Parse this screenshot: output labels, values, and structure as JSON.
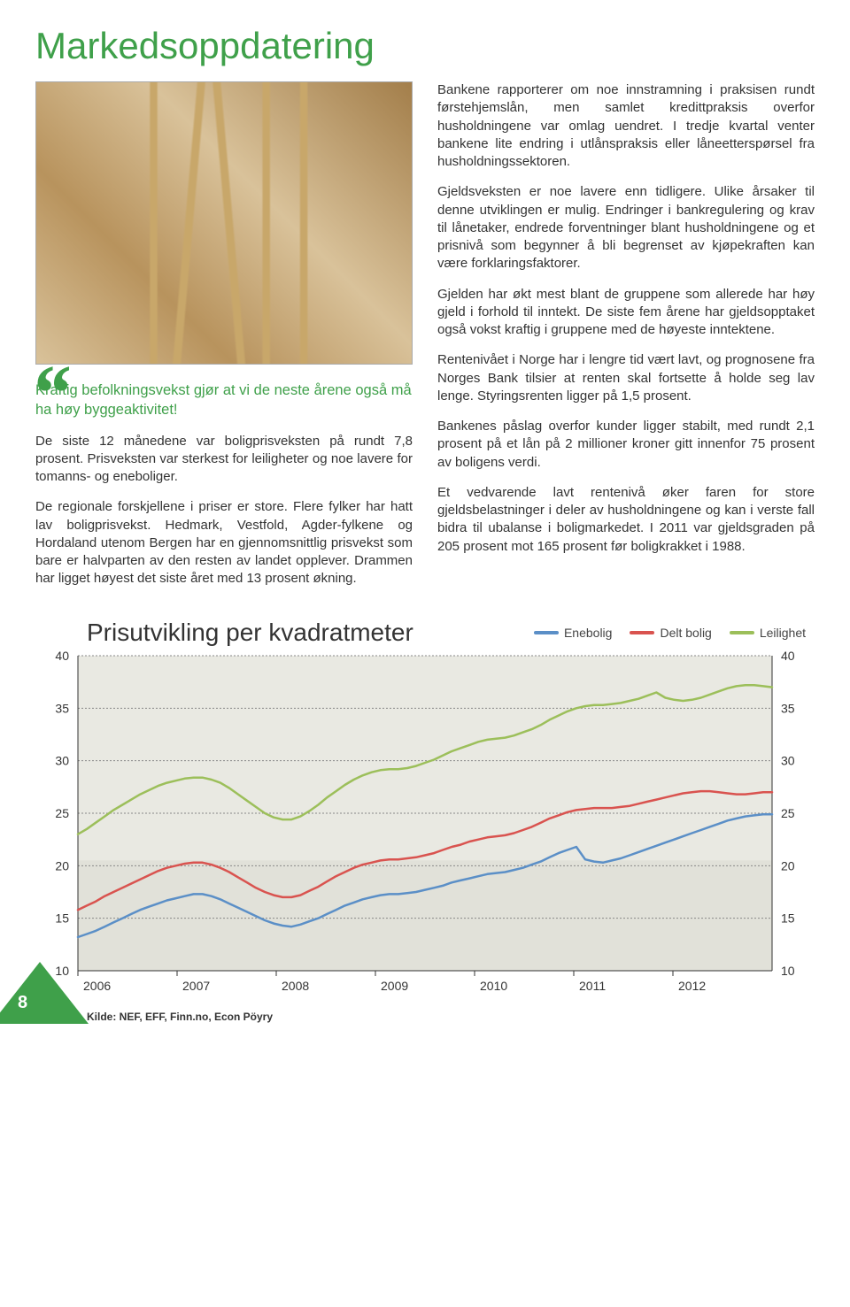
{
  "title": "Markedsoppdatering",
  "title_color": "#3fa04a",
  "quote_color": "#3fa04a",
  "left": {
    "lead": "Kraftig befolkningsvekst gjør at vi de neste årene også må ha høy byggeaktivitet!",
    "p1": "De siste 12 månedene var boligprisveksten på rundt 7,8 prosent. Prisveksten var sterkest for leiligheter og noe lavere for tomanns- og eneboliger.",
    "p2": "De regionale forskjellene i priser er store. Flere fylker har hatt lav boligprisvekst. Hedmark, Vestfold, Agder-fylkene og Hordaland utenom Bergen har en gjennomsnittlig prisvekst som bare er halvparten av den resten av landet opplever. Drammen har ligget høyest det siste året med 13 prosent økning."
  },
  "right": {
    "p1": "Bankene rapporterer om noe innstramning i praksisen rundt førstehjemslån, men samlet kredittpraksis overfor husholdningene var omlag uendret. I tredje kvartal venter bankene lite endring i utlånspraksis eller låneetterspørsel fra husholdningssektoren.",
    "p2": "Gjeldsveksten er noe lavere enn tidligere. Ulike årsaker til denne utviklingen er mulig. Endringer i bankregulering og krav til lånetaker, endrede forventninger blant husholdningene og et prisnivå som begynner å bli begrenset av kjøpekraften kan være forklaringsfaktorer.",
    "p3": "Gjelden har økt mest blant de gruppene som allerede har høy gjeld i forhold til inntekt. De siste fem årene har gjeldsopptaket også vokst kraftig i gruppene med de høyeste inntektene.",
    "p4": "Rentenivået i Norge har i lengre tid vært lavt, og prognosene fra Norges Bank tilsier at renten skal fortsette å holde seg lav lenge. Styringsrenten ligger på 1,5 prosent.",
    "p5": "Bankenes påslag overfor kunder ligger stabilt, med rundt 2,1 prosent på et lån på 2 millioner kroner gitt innenfor 75 prosent av boligens verdi.",
    "p6": "Et vedvarende lavt rentenivå øker faren for store gjeldsbelastninger i deler av husholdningene og kan i verste fall bidra til ubalanse i boligmarkedet. I 2011 var gjeldsgraden på 205 prosent mot 165 prosent før boligkrakket i 1988."
  },
  "chart": {
    "type": "line",
    "title": "Prisutvikling per kvadratmeter",
    "legend": [
      {
        "label": "Enebolig",
        "color": "#5b8fc7"
      },
      {
        "label": "Delt bolig",
        "color": "#d9534f"
      },
      {
        "label": "Leilighet",
        "color": "#9cbf5a"
      }
    ],
    "ylim": [
      10,
      40
    ],
    "ytick_step": 5,
    "x_labels": [
      "2006",
      "2007",
      "2008",
      "2009",
      "2010",
      "2011",
      "2012"
    ],
    "background_color": "#e9e9e2",
    "grid_color": "#888888",
    "axis_fontsize": 14,
    "line_width": 2.5,
    "series": {
      "enebolig": [
        13.2,
        13.5,
        13.8,
        14.2,
        14.6,
        15.0,
        15.4,
        15.8,
        16.1,
        16.4,
        16.7,
        16.9,
        17.1,
        17.3,
        17.3,
        17.1,
        16.8,
        16.4,
        16.0,
        15.6,
        15.2,
        14.8,
        14.5,
        14.3,
        14.2,
        14.4,
        14.7,
        15.0,
        15.4,
        15.8,
        16.2,
        16.5,
        16.8,
        17.0,
        17.2,
        17.3,
        17.3,
        17.4,
        17.5,
        17.7,
        17.9,
        18.1,
        18.4,
        18.6,
        18.8,
        19.0,
        19.2,
        19.3,
        19.4,
        19.6,
        19.8,
        20.1,
        20.4,
        20.8,
        21.2,
        21.5,
        21.8,
        20.6,
        20.4,
        20.3,
        20.5,
        20.7,
        21.0,
        21.3,
        21.6,
        21.9,
        22.2,
        22.5,
        22.8,
        23.1,
        23.4,
        23.7,
        24.0,
        24.3,
        24.5,
        24.7,
        24.8,
        24.9,
        24.9
      ],
      "delt": [
        15.8,
        16.2,
        16.6,
        17.1,
        17.5,
        17.9,
        18.3,
        18.7,
        19.1,
        19.5,
        19.8,
        20.0,
        20.2,
        20.3,
        20.3,
        20.1,
        19.8,
        19.4,
        18.9,
        18.4,
        17.9,
        17.5,
        17.2,
        17.0,
        17.0,
        17.2,
        17.6,
        18.0,
        18.5,
        19.0,
        19.4,
        19.8,
        20.1,
        20.3,
        20.5,
        20.6,
        20.6,
        20.7,
        20.8,
        21.0,
        21.2,
        21.5,
        21.8,
        22.0,
        22.3,
        22.5,
        22.7,
        22.8,
        22.9,
        23.1,
        23.4,
        23.7,
        24.1,
        24.5,
        24.8,
        25.1,
        25.3,
        25.4,
        25.5,
        25.5,
        25.5,
        25.6,
        25.7,
        25.9,
        26.1,
        26.3,
        26.5,
        26.7,
        26.9,
        27.0,
        27.1,
        27.1,
        27.0,
        26.9,
        26.8,
        26.8,
        26.9,
        27.0,
        27.0
      ],
      "leilighet": [
        23.0,
        23.5,
        24.1,
        24.7,
        25.3,
        25.8,
        26.3,
        26.8,
        27.2,
        27.6,
        27.9,
        28.1,
        28.3,
        28.4,
        28.4,
        28.2,
        27.9,
        27.4,
        26.8,
        26.2,
        25.6,
        25.0,
        24.6,
        24.4,
        24.4,
        24.7,
        25.2,
        25.8,
        26.5,
        27.1,
        27.7,
        28.2,
        28.6,
        28.9,
        29.1,
        29.2,
        29.2,
        29.3,
        29.5,
        29.8,
        30.1,
        30.5,
        30.9,
        31.2,
        31.5,
        31.8,
        32.0,
        32.1,
        32.2,
        32.4,
        32.7,
        33.0,
        33.4,
        33.9,
        34.3,
        34.7,
        35.0,
        35.2,
        35.3,
        35.3,
        35.4,
        35.5,
        35.7,
        35.9,
        36.2,
        36.5,
        36.0,
        35.8,
        35.7,
        35.8,
        36.0,
        36.3,
        36.6,
        36.9,
        37.1,
        37.2,
        37.2,
        37.1,
        37.0
      ]
    }
  },
  "source": "Kilde: NEF, EFF, Finn.no, Econ Pöyry",
  "page_number": "8",
  "page_badge_color": "#3fa04a"
}
